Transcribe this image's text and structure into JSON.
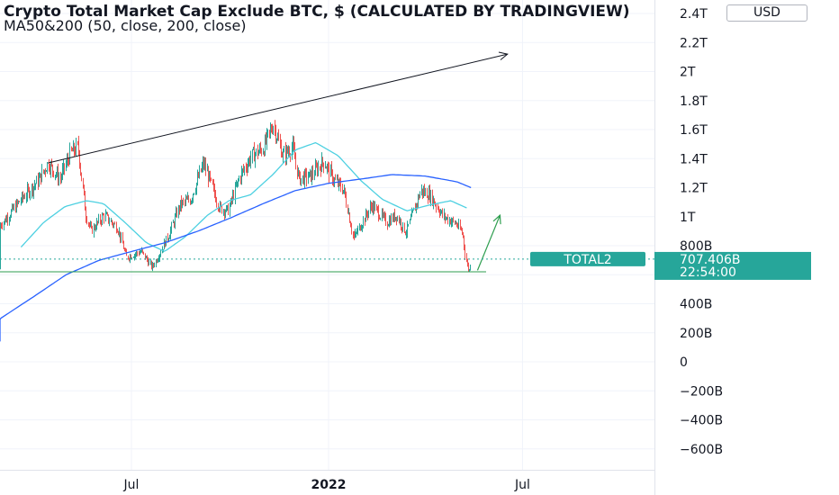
{
  "header": {
    "title": "Crypto Total Market Cap Exclude BTC, $ (CALCULATED BY TRADINGVIEW)",
    "subtitle": "MA50&200 (50, close, 200, close)",
    "currency": "USD"
  },
  "colors": {
    "up": "#26a69a",
    "down": "#ef5350",
    "ma50": "#4dd0e1",
    "ma200": "#2962ff",
    "badge": "#26a69a",
    "support_line": "#2e9e4f",
    "arrow_green": "#2e9e4f",
    "arrow_black": "#131722"
  },
  "chart_data": {
    "type": "candlestick",
    "symbol": "TOTAL2",
    "x_labels": [
      "Jul",
      "2022",
      "Jul"
    ],
    "y_ticks": [
      "2.4T",
      "2.2T",
      "2T",
      "1.8T",
      "1.6T",
      "1.4T",
      "1.2T",
      "1T",
      "800B",
      "600B",
      "400B",
      "200B",
      "0",
      "−200B",
      "−400B",
      "−600B"
    ],
    "ylim_billions": [
      -680,
      2420
    ],
    "last_price": "707.406B",
    "countdown": "22:54:00",
    "series": [
      {
        "name": "TOTAL2",
        "anchors": [
          [
            "2021-01-20",
            640
          ],
          [
            "2021-02-05",
            760
          ],
          [
            "2021-02-20",
            880
          ],
          [
            "2021-03-05",
            980
          ],
          [
            "2021-03-20",
            1120
          ],
          [
            "2021-04-05",
            1250
          ],
          [
            "2021-04-14",
            1370
          ],
          [
            "2021-04-25",
            1260
          ],
          [
            "2021-05-05",
            1440
          ],
          [
            "2021-05-12",
            1480
          ],
          [
            "2021-05-19",
            1020
          ],
          [
            "2021-05-24",
            900
          ],
          [
            "2021-06-05",
            1010
          ],
          [
            "2021-06-18",
            920
          ],
          [
            "2021-06-26",
            720
          ],
          [
            "2021-07-10",
            760
          ],
          [
            "2021-07-20",
            650
          ],
          [
            "2021-07-28",
            760
          ],
          [
            "2021-08-05",
            880
          ],
          [
            "2021-08-15",
            1080
          ],
          [
            "2021-08-25",
            1120
          ],
          [
            "2021-09-06",
            1370
          ],
          [
            "2021-09-21",
            1060
          ],
          [
            "2021-09-29",
            1040
          ],
          [
            "2021-10-10",
            1280
          ],
          [
            "2021-10-21",
            1420
          ],
          [
            "2021-11-01",
            1470
          ],
          [
            "2021-11-10",
            1640
          ],
          [
            "2021-11-19",
            1420
          ],
          [
            "2021-11-28",
            1480
          ],
          [
            "2021-12-04",
            1260
          ],
          [
            "2021-12-15",
            1280
          ],
          [
            "2021-12-27",
            1380
          ],
          [
            "2022-01-05",
            1260
          ],
          [
            "2022-01-15",
            1180
          ],
          [
            "2022-01-24",
            850
          ],
          [
            "2022-02-10",
            1080
          ],
          [
            "2022-02-24",
            960
          ],
          [
            "2022-03-05",
            1010
          ],
          [
            "2022-03-14",
            890
          ],
          [
            "2022-03-28",
            1180
          ],
          [
            "2022-04-05",
            1150
          ],
          [
            "2022-04-18",
            1000
          ],
          [
            "2022-04-30",
            950
          ],
          [
            "2022-05-06",
            880
          ],
          [
            "2022-05-09",
            700
          ],
          [
            "2022-05-12",
            620
          ],
          [
            "2022-05-14",
            707
          ]
        ]
      },
      {
        "name": "MA50",
        "anchors": [
          [
            "2021-03-20",
            790
          ],
          [
            "2021-04-10",
            960
          ],
          [
            "2021-04-30",
            1070
          ],
          [
            "2021-05-20",
            1110
          ],
          [
            "2021-06-05",
            1090
          ],
          [
            "2021-06-25",
            960
          ],
          [
            "2021-07-15",
            820
          ],
          [
            "2021-08-01",
            760
          ],
          [
            "2021-08-20",
            860
          ],
          [
            "2021-09-10",
            1010
          ],
          [
            "2021-09-30",
            1110
          ],
          [
            "2021-10-20",
            1150
          ],
          [
            "2021-11-10",
            1290
          ],
          [
            "2021-12-01",
            1460
          ],
          [
            "2021-12-20",
            1510
          ],
          [
            "2022-01-10",
            1420
          ],
          [
            "2022-01-31",
            1250
          ],
          [
            "2022-02-20",
            1120
          ],
          [
            "2022-03-15",
            1040
          ],
          [
            "2022-04-05",
            1080
          ],
          [
            "2022-04-25",
            1110
          ],
          [
            "2022-05-10",
            1060
          ]
        ]
      },
      {
        "name": "MA200",
        "anchors": [
          [
            "2021-01-20",
            140
          ],
          [
            "2021-03-01",
            300
          ],
          [
            "2021-04-01",
            450
          ],
          [
            "2021-05-01",
            600
          ],
          [
            "2021-06-01",
            700
          ],
          [
            "2021-07-01",
            760
          ],
          [
            "2021-08-01",
            820
          ],
          [
            "2021-09-01",
            900
          ],
          [
            "2021-10-01",
            990
          ],
          [
            "2021-11-01",
            1090
          ],
          [
            "2021-12-01",
            1180
          ],
          [
            "2022-01-01",
            1230
          ],
          [
            "2022-02-01",
            1260
          ],
          [
            "2022-03-01",
            1290
          ],
          [
            "2022-04-01",
            1280
          ],
          [
            "2022-05-01",
            1240
          ],
          [
            "2022-05-14",
            1200
          ]
        ]
      }
    ],
    "annotations": {
      "trend_line": [
        [
          "2021-04-14",
          1370
        ],
        [
          "2022-06-17",
          2120
        ]
      ],
      "support_line": 620,
      "green_arrow": [
        [
          "2022-05-20",
          630
        ],
        [
          "2022-06-10",
          1010
        ]
      ]
    }
  }
}
